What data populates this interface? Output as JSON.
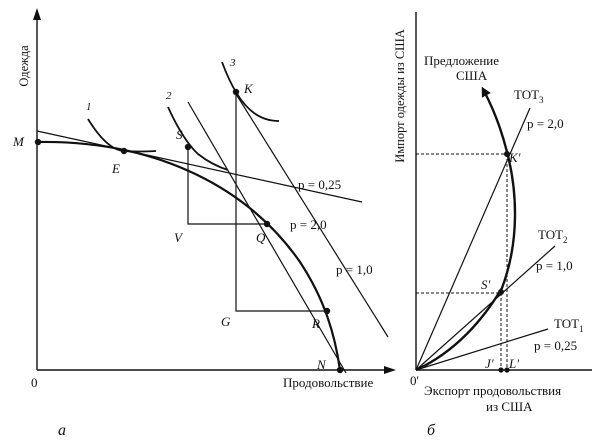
{
  "panel_a": {
    "y_axis_label": "Одежда",
    "x_axis_label": "Продовольствие",
    "origin": "0",
    "points": {
      "M": "M",
      "E": "E",
      "S": "S",
      "K": "K",
      "V": "V",
      "Q": "Q",
      "G": "G",
      "R": "R",
      "N": "N"
    },
    "indifference_curves": [
      "1",
      "2",
      "3"
    ],
    "price_lines": {
      "p025": "p = 0,25",
      "p20": "p = 2,0",
      "p10": "p = 1,0"
    },
    "caption": "а"
  },
  "panel_b": {
    "y_axis_label": "Импорт одежды из США",
    "x_axis_label_line1": "Экспорт продовольствия",
    "x_axis_label_line2": "из США",
    "origin": "0'",
    "offer_curve_label_line1": "Предложение",
    "offer_curve_label_line2": "США",
    "tot3": {
      "name": "TOT",
      "sub": "3",
      "price": "p = 2,0"
    },
    "tot2": {
      "name": "TOT",
      "sub": "2",
      "price": "p = 1,0"
    },
    "tot1": {
      "name": "TOT",
      "sub": "1",
      "price": "p = 0,25"
    },
    "points": {
      "K": "K'",
      "S": "S'",
      "J": "J'",
      "L": "L'"
    },
    "caption": "б"
  }
}
